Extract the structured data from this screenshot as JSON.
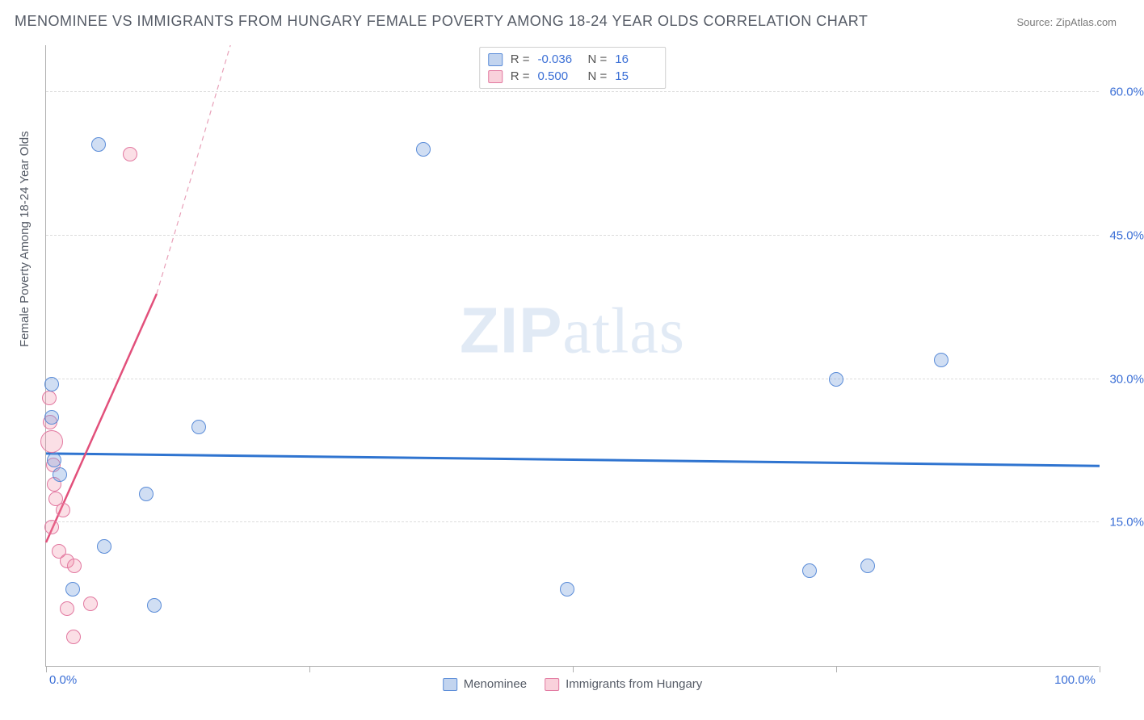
{
  "title": "MENOMINEE VS IMMIGRANTS FROM HUNGARY FEMALE POVERTY AMONG 18-24 YEAR OLDS CORRELATION CHART",
  "source_label": "Source: ZipAtlas.com",
  "ylabel": "Female Poverty Among 18-24 Year Olds",
  "watermark_zip": "ZIP",
  "watermark_atlas": "atlas",
  "chart": {
    "type": "scatter",
    "xlim": [
      0,
      100
    ],
    "ylim": [
      0,
      65
    ],
    "x_ticks_label_left": "0.0%",
    "x_ticks_label_right": "100.0%",
    "x_tick_positions": [
      0,
      25,
      50,
      75,
      100
    ],
    "y_gridlines": [
      15,
      30,
      45,
      60
    ],
    "y_tick_labels": [
      "15.0%",
      "30.0%",
      "45.0%",
      "60.0%"
    ],
    "background_color": "#ffffff",
    "grid_color": "#dcdcdc",
    "axis_color": "#b0b0b0",
    "point_radius": 9,
    "series": {
      "menominee": {
        "label": "Menominee",
        "color_fill": "rgba(120,160,220,0.35)",
        "color_stroke": "#5a8cd8",
        "r_value": "-0.036",
        "n_value": "16",
        "trend": {
          "x1": 0,
          "y1": 22.3,
          "x2": 100,
          "y2": 21.0,
          "stroke": "#2f74d0",
          "width": 3
        },
        "points": [
          {
            "x": 0.5,
            "y": 29.5
          },
          {
            "x": 0.5,
            "y": 26.0
          },
          {
            "x": 0.8,
            "y": 21.5
          },
          {
            "x": 1.3,
            "y": 20.0
          },
          {
            "x": 5.0,
            "y": 54.5
          },
          {
            "x": 5.5,
            "y": 12.5
          },
          {
            "x": 9.5,
            "y": 18.0
          },
          {
            "x": 10.3,
            "y": 6.3
          },
          {
            "x": 14.5,
            "y": 25.0
          },
          {
            "x": 2.5,
            "y": 8.0
          },
          {
            "x": 35.8,
            "y": 54.0
          },
          {
            "x": 49.5,
            "y": 8.0
          },
          {
            "x": 72.5,
            "y": 10.0
          },
          {
            "x": 75.0,
            "y": 30.0
          },
          {
            "x": 78.0,
            "y": 10.5
          },
          {
            "x": 85.0,
            "y": 32.0
          }
        ]
      },
      "hungary": {
        "label": "Immigrants from Hungary",
        "color_fill": "rgba(240,140,165,0.28)",
        "color_stroke": "#e278a0",
        "r_value": "0.500",
        "n_value": "15",
        "trend_solid": {
          "x1": 0,
          "y1": 13.0,
          "x2": 10.5,
          "y2": 39.0,
          "stroke": "#e2507b",
          "width": 2.5
        },
        "trend_dashed": {
          "x1": 10.5,
          "y1": 39.0,
          "x2": 17.5,
          "y2": 65.0,
          "stroke": "#e8a0b8",
          "width": 1.2
        },
        "points": [
          {
            "x": 0.3,
            "y": 28.0
          },
          {
            "x": 0.4,
            "y": 25.5
          },
          {
            "x": 0.5,
            "y": 23.5,
            "r": 14
          },
          {
            "x": 0.7,
            "y": 21.0
          },
          {
            "x": 0.8,
            "y": 19.0
          },
          {
            "x": 0.9,
            "y": 17.5
          },
          {
            "x": 1.6,
            "y": 16.3
          },
          {
            "x": 1.2,
            "y": 12.0
          },
          {
            "x": 2.0,
            "y": 11.0
          },
          {
            "x": 2.7,
            "y": 10.5
          },
          {
            "x": 2.0,
            "y": 6.0
          },
          {
            "x": 4.2,
            "y": 6.5
          },
          {
            "x": 2.6,
            "y": 3.0
          },
          {
            "x": 8.0,
            "y": 53.5
          },
          {
            "x": 0.5,
            "y": 14.5
          }
        ]
      }
    }
  },
  "legend_top": {
    "r_label": "R =",
    "n_label": "N ="
  }
}
